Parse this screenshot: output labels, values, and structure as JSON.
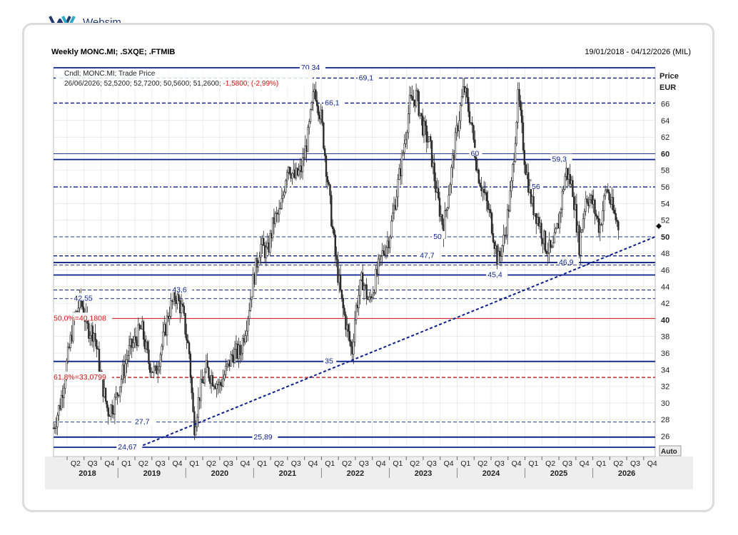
{
  "brand": {
    "name": "Websim"
  },
  "header": {
    "title": "Weekly MONC.MI; .SXQE; .FTMIB",
    "date_range": "19/01/2018 - 04/12/2026 (MIL)"
  },
  "legend": {
    "line1": "Cndl; MONC.MI; Trade Price",
    "line2_prefix": "26/06/2026; 52,5200; 52,7200; 50,5600; 51,2600; ",
    "line2_change": "-1,5800; (-2,99%)"
  },
  "axis": {
    "price_label": "Price",
    "currency_label": "EUR",
    "auto_label": "Auto",
    "y_ticks": [
      "26",
      "28",
      "30",
      "32",
      "34",
      "36",
      "38",
      "40",
      "42",
      "44",
      "46",
      "48",
      "50",
      "52",
      "54",
      "56",
      "58",
      "60",
      "62",
      "64",
      "66"
    ],
    "bold_ticks": [
      "40",
      "50",
      "60"
    ]
  },
  "colors": {
    "navy": "#0a1f8a",
    "fib": "#d01010",
    "candle": "#2a2a2a",
    "grid": "#dcdcdc"
  },
  "chart_data": {
    "type": "candlestick",
    "ylim": [
      24.67,
      70.34
    ],
    "x_start": 2018.05,
    "x_end": 2026.92,
    "quarter_labels": [
      "Q2",
      "Q3",
      "Q4",
      "Q1",
      "Q2",
      "Q3",
      "Q4",
      "Q1",
      "Q2",
      "Q3",
      "Q4",
      "Q1",
      "Q2",
      "Q3",
      "Q4",
      "Q1",
      "Q2",
      "Q3",
      "Q4",
      "Q1",
      "Q2",
      "Q3",
      "Q4",
      "Q1",
      "Q2",
      "Q3",
      "Q4",
      "Q1",
      "Q2",
      "Q3",
      "Q4",
      "Q1",
      "Q2",
      "Q3",
      "Q4",
      "Q1",
      "Q2",
      "Q3",
      "Q4"
    ],
    "year_labels": [
      "2018",
      "2019",
      "2020",
      "2021",
      "2022",
      "2023",
      "2024",
      "2025",
      "2026"
    ],
    "levels": [
      {
        "value": 70.34,
        "label": "70,34",
        "style": "solid",
        "color": "navy",
        "label_at": 2021.7
      },
      {
        "value": 69.1,
        "label": "69,1",
        "style": "dashed",
        "color": "navy",
        "label_at": 2022.55
      },
      {
        "value": 66.1,
        "label": "66,1",
        "style": "dashed",
        "color": "navy",
        "label_at": 2022.05
      },
      {
        "value": 60,
        "label": "60",
        "style": "thin",
        "color": "navy",
        "label_at": 2024.2
      },
      {
        "value": 59.3,
        "label": "59,3",
        "style": "solid",
        "color": "navy",
        "label_at": 2025.4
      },
      {
        "value": 56,
        "label": "56",
        "style": "dashdot",
        "color": "navy",
        "label_at": 2025.1
      },
      {
        "value": 50,
        "label": "50",
        "style": "thin-dashed",
        "color": "navy",
        "label_at": 2023.65
      },
      {
        "value": 47.7,
        "label": "47,7",
        "style": "dashed",
        "color": "navy",
        "label_at": 2023.45
      },
      {
        "value": 46.9,
        "label": "46,9",
        "style": "solid",
        "color": "navy",
        "label_at": 2025.5
      },
      {
        "value": 46.6,
        "label": "",
        "style": "thin-dashed",
        "color": "navy",
        "label_at": null
      },
      {
        "value": 45.4,
        "label": "45,4",
        "style": "solid",
        "color": "navy",
        "label_at": 2024.45
      },
      {
        "value": 43.6,
        "label": "43,6",
        "style": "thin-dashed",
        "color": "navy",
        "label_at": 2019.8
      },
      {
        "value": 42.55,
        "label": "42,55",
        "style": "thin-dashed",
        "color": "navy",
        "label_at": 2018.35
      },
      {
        "value": 40.1808,
        "label": "50,0%=40,1808",
        "style": "solid",
        "color": "fib",
        "label_at": 2018.05
      },
      {
        "value": 35,
        "label": "35",
        "style": "solid",
        "color": "navy",
        "label_at": 2022.05
      },
      {
        "value": 33.0799,
        "label": "61,8%=33,0799",
        "style": "dashed",
        "color": "fib",
        "label_at": 2018.05
      },
      {
        "value": 27.7,
        "label": "27,7",
        "style": "thin-dashed",
        "color": "navy",
        "label_at": 2019.25
      },
      {
        "value": 25.89,
        "label": "25,89",
        "style": "solid",
        "color": "navy",
        "label_at": 2021.0
      },
      {
        "value": 24.67,
        "label": "24,67",
        "style": "solid",
        "color": "navy",
        "label_at": 2019.0
      }
    ],
    "trendline": {
      "from": [
        2019.3,
        24.67
      ],
      "to": [
        2026.92,
        50.0
      ]
    },
    "series_points": [
      [
        2018.05,
        27.0
      ],
      [
        2018.15,
        30.0
      ],
      [
        2018.25,
        35.0
      ],
      [
        2018.35,
        40.0
      ],
      [
        2018.45,
        42.5
      ],
      [
        2018.55,
        39.0
      ],
      [
        2018.65,
        38.5
      ],
      [
        2018.75,
        33.0
      ],
      [
        2018.85,
        29.0
      ],
      [
        2018.95,
        30.0
      ],
      [
        2019.05,
        33.0
      ],
      [
        2019.15,
        36.0
      ],
      [
        2019.25,
        37.5
      ],
      [
        2019.35,
        39.0
      ],
      [
        2019.45,
        35.0
      ],
      [
        2019.55,
        33.5
      ],
      [
        2019.65,
        37.0
      ],
      [
        2019.75,
        41.0
      ],
      [
        2019.85,
        43.0
      ],
      [
        2019.95,
        41.0
      ],
      [
        2020.05,
        36.0
      ],
      [
        2020.12,
        27.0
      ],
      [
        2020.2,
        31.0
      ],
      [
        2020.3,
        34.0
      ],
      [
        2020.4,
        33.0
      ],
      [
        2020.5,
        32.0
      ],
      [
        2020.6,
        34.0
      ],
      [
        2020.7,
        36.0
      ],
      [
        2020.8,
        36.0
      ],
      [
        2020.9,
        40.0
      ],
      [
        2021.0,
        45.0
      ],
      [
        2021.1,
        49.0
      ],
      [
        2021.2,
        48.0
      ],
      [
        2021.3,
        52.0
      ],
      [
        2021.4,
        53.0
      ],
      [
        2021.5,
        59.0
      ],
      [
        2021.6,
        57.0
      ],
      [
        2021.7,
        58.0
      ],
      [
        2021.8,
        62.0
      ],
      [
        2021.9,
        68.0
      ],
      [
        2022.0,
        64.0
      ],
      [
        2022.1,
        56.0
      ],
      [
        2022.2,
        48.0
      ],
      [
        2022.3,
        42.0
      ],
      [
        2022.4,
        38.0
      ],
      [
        2022.45,
        36.0
      ],
      [
        2022.5,
        41.0
      ],
      [
        2022.6,
        45.0
      ],
      [
        2022.7,
        42.0
      ],
      [
        2022.8,
        45.0
      ],
      [
        2022.9,
        48.0
      ],
      [
        2023.0,
        50.0
      ],
      [
        2023.1,
        55.0
      ],
      [
        2023.2,
        60.0
      ],
      [
        2023.3,
        66.0
      ],
      [
        2023.4,
        67.0
      ],
      [
        2023.5,
        63.0
      ],
      [
        2023.6,
        61.0
      ],
      [
        2023.7,
        55.0
      ],
      [
        2023.8,
        51.0
      ],
      [
        2023.9,
        57.0
      ],
      [
        2024.0,
        63.0
      ],
      [
        2024.1,
        68.0
      ],
      [
        2024.2,
        64.0
      ],
      [
        2024.3,
        58.0
      ],
      [
        2024.4,
        55.0
      ],
      [
        2024.5,
        52.0
      ],
      [
        2024.6,
        47.0
      ],
      [
        2024.7,
        50.0
      ],
      [
        2024.8,
        56.0
      ],
      [
        2024.9,
        67.0
      ],
      [
        2025.0,
        59.0
      ],
      [
        2025.1,
        54.0
      ],
      [
        2025.2,
        52.0
      ],
      [
        2025.3,
        49.0
      ],
      [
        2025.4,
        48.0
      ],
      [
        2025.5,
        52.0
      ],
      [
        2025.6,
        58.0
      ],
      [
        2025.7,
        56.0
      ],
      [
        2025.8,
        49.0
      ],
      [
        2025.9,
        55.0
      ],
      [
        2026.0,
        54.0
      ],
      [
        2026.1,
        51.0
      ],
      [
        2026.2,
        56.0
      ],
      [
        2026.3,
        53.0
      ],
      [
        2026.38,
        51.26
      ]
    ]
  }
}
